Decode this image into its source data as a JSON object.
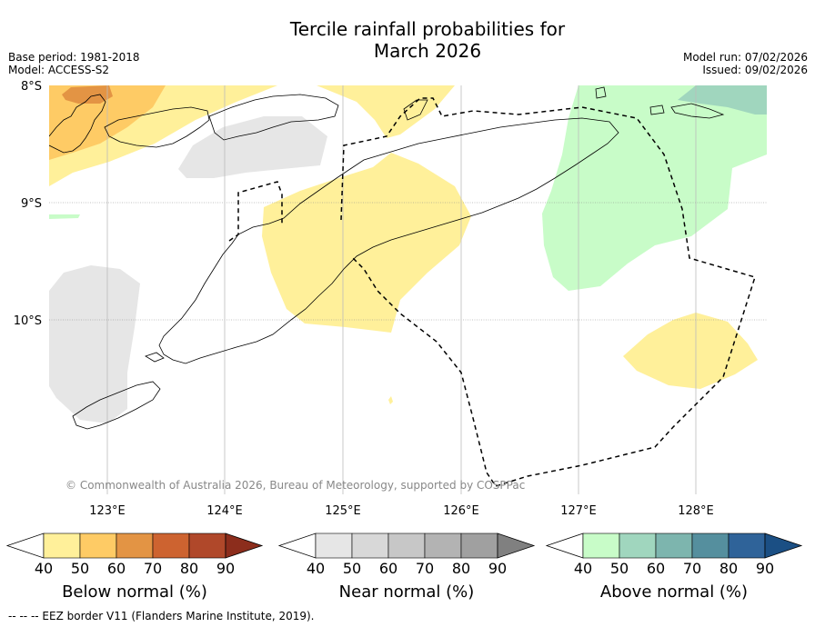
{
  "title_line1": "Tercile rainfall probabilities for",
  "title_line2": "March 2026",
  "meta": {
    "base_period": "Base period: 1981-2018",
    "model": "Model: ACCESS-S2",
    "model_run": "Model run: 07/02/2026",
    "issued": "Issued: 09/02/2026"
  },
  "map": {
    "lat_labels": [
      "8°S",
      "9°S",
      "10°S"
    ],
    "lon_labels": [
      "123°E",
      "124°E",
      "125°E",
      "126°E",
      "127°E",
      "128°E"
    ],
    "copyright": "© Commonwealth of Australia 2026, Bureau of Meteorology, supported by COSPPac"
  },
  "colorbars": [
    {
      "name": "below",
      "title": "Below normal (%)",
      "ticks": [
        "40",
        "50",
        "60",
        "70",
        "80",
        "90"
      ],
      "colors": [
        "#ffffff",
        "#fff09a",
        "#fecb65",
        "#e39444",
        "#cd6330",
        "#b0482a",
        "#8c2d1c"
      ]
    },
    {
      "name": "near",
      "title": "Near normal (%)",
      "ticks": [
        "40",
        "50",
        "60",
        "70",
        "80",
        "90"
      ],
      "colors": [
        "#ffffff",
        "#e6e6e6",
        "#d8d8d8",
        "#c7c7c7",
        "#b3b3b3",
        "#a0a0a0",
        "#808080"
      ]
    },
    {
      "name": "above",
      "title": "Above normal (%)",
      "ticks": [
        "40",
        "50",
        "60",
        "70",
        "80",
        "90"
      ],
      "colors": [
        "#ffffff",
        "#c8fcc8",
        "#a0d6be",
        "#7db5ae",
        "#558f9e",
        "#2f6399",
        "#1b4f84"
      ]
    }
  ],
  "footnote": "--  --  -- EEZ border V11 (Flanders Marine Institute, 2019)."
}
